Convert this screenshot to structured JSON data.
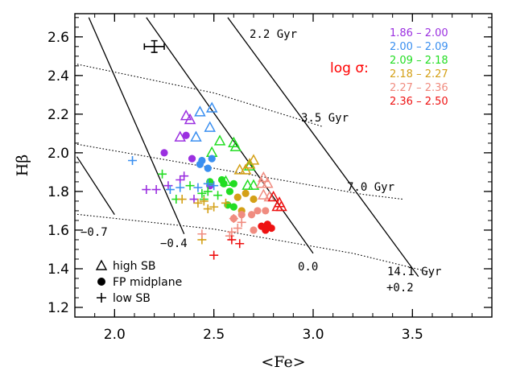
{
  "chart_data": {
    "type": "scatter",
    "xlabel": "<Fe>",
    "ylabel": "Hβ",
    "xlim": [
      1.8,
      3.9
    ],
    "ylim": [
      1.15,
      2.72
    ],
    "xticks": [
      {
        "v": 2.0,
        "label": "2.0"
      },
      {
        "v": 2.5,
        "label": "2.5"
      },
      {
        "v": 3.0,
        "label": "3.0"
      },
      {
        "v": 3.5,
        "label": "3.5"
      }
    ],
    "yticks": [
      {
        "v": 1.2,
        "label": "1.2"
      },
      {
        "v": 1.4,
        "label": "1.4"
      },
      {
        "v": 1.6,
        "label": "1.6"
      },
      {
        "v": 1.8,
        "label": "1.8"
      },
      {
        "v": 2.0,
        "label": "2.0"
      },
      {
        "v": 2.2,
        "label": "2.2"
      },
      {
        "v": 2.4,
        "label": "2.4"
      },
      {
        "v": 2.6,
        "label": "2.6"
      }
    ],
    "sigma_title": "log σ:",
    "sigma_title_color": "#ff0000",
    "bins": [
      {
        "label": "1.86 – 2.00",
        "color": "#9b30e0"
      },
      {
        "label": "2.00 – 2.09",
        "color": "#3a8ff0"
      },
      {
        "label": "2.09 – 2.18",
        "color": "#22dd22"
      },
      {
        "label": "2.18 – 2.27",
        "color": "#d4a017"
      },
      {
        "label": "2.27 – 2.36",
        "color": "#f08c80"
      },
      {
        "label": "2.36 – 2.50",
        "color": "#ee1111"
      }
    ],
    "age_grid": [
      {
        "label": "2.2 Gyr",
        "points": [
          [
            1.78,
            2.735
          ],
          [
            2.6,
            2.73
          ]
        ]
      },
      {
        "label": "3.5 Gyr",
        "points": [
          [
            1.78,
            2.465
          ],
          [
            2.5,
            2.31
          ],
          [
            3.05,
            2.135
          ]
        ]
      },
      {
        "label": "7.0 Gyr",
        "points": [
          [
            1.78,
            2.05
          ],
          [
            2.5,
            1.92
          ],
          [
            3.25,
            1.785
          ],
          [
            3.45,
            1.76
          ]
        ]
      },
      {
        "label": "14.1 Gyr",
        "points": [
          [
            1.78,
            1.685
          ],
          [
            2.5,
            1.605
          ],
          [
            3.2,
            1.48
          ],
          [
            3.6,
            1.38
          ]
        ]
      }
    ],
    "metal_grid": [
      {
        "label": "−0.7",
        "points": [
          [
            1.81,
            1.98
          ],
          [
            2.0,
            1.68
          ]
        ]
      },
      {
        "label": "−0.4",
        "points": [
          [
            1.87,
            2.7
          ],
          [
            2.35,
            1.58
          ]
        ]
      },
      {
        "label": "0.0",
        "points": [
          [
            2.16,
            2.7
          ],
          [
            3.0,
            1.48
          ]
        ]
      },
      {
        "label": "+0.2",
        "points": [
          [
            2.57,
            2.7
          ],
          [
            3.53,
            1.36
          ]
        ]
      }
    ],
    "error_bar": {
      "x": 2.2,
      "y": 2.55,
      "dx": 0.05,
      "dy": 0.03
    },
    "legend": [
      {
        "marker": "triangle",
        "label": "high SB"
      },
      {
        "marker": "circle",
        "label": "FP midplane"
      },
      {
        "marker": "plus",
        "label": "low SB"
      }
    ],
    "series": [
      {
        "marker": "triangle",
        "points": [
          [
            2.36,
            2.19,
            0
          ],
          [
            2.38,
            2.17,
            0
          ],
          [
            2.33,
            2.08,
            0
          ],
          [
            2.43,
            2.21,
            1
          ],
          [
            2.49,
            2.23,
            1
          ],
          [
            2.41,
            2.08,
            1
          ],
          [
            2.48,
            2.13,
            1
          ],
          [
            2.6,
            2.05,
            2
          ],
          [
            2.61,
            2.03,
            2
          ],
          [
            2.53,
            2.06,
            2
          ],
          [
            2.49,
            2.0,
            2
          ],
          [
            2.68,
            1.93,
            2
          ],
          [
            2.56,
            1.85,
            2
          ],
          [
            2.67,
            1.83,
            2
          ],
          [
            2.7,
            1.83,
            2
          ],
          [
            2.63,
            1.91,
            3
          ],
          [
            2.66,
            1.91,
            3
          ],
          [
            2.68,
            1.94,
            3
          ],
          [
            2.7,
            1.96,
            3
          ],
          [
            2.75,
            1.87,
            4
          ],
          [
            2.74,
            1.84,
            4
          ],
          [
            2.78,
            1.77,
            4
          ],
          [
            2.75,
            1.78,
            4
          ],
          [
            2.77,
            1.84,
            4
          ],
          [
            2.8,
            1.77,
            5
          ],
          [
            2.82,
            1.72,
            5
          ],
          [
            2.83,
            1.74,
            5
          ],
          [
            2.84,
            1.72,
            5
          ]
        ]
      },
      {
        "marker": "circle",
        "points": [
          [
            2.25,
            2.0,
            0
          ],
          [
            2.36,
            2.09,
            0
          ],
          [
            2.39,
            1.97,
            0
          ],
          [
            2.48,
            1.83,
            0
          ],
          [
            2.43,
            1.94,
            1
          ],
          [
            2.44,
            1.96,
            1
          ],
          [
            2.47,
            1.92,
            1
          ],
          [
            2.49,
            1.97,
            1
          ],
          [
            2.48,
            1.85,
            2
          ],
          [
            2.54,
            1.86,
            2
          ],
          [
            2.55,
            1.84,
            2
          ],
          [
            2.58,
            1.8,
            2
          ],
          [
            2.6,
            1.84,
            2
          ],
          [
            2.57,
            1.73,
            2
          ],
          [
            2.6,
            1.72,
            2
          ],
          [
            2.62,
            1.77,
            3
          ],
          [
            2.66,
            1.79,
            3
          ],
          [
            2.7,
            1.76,
            3
          ],
          [
            2.64,
            1.7,
            3
          ],
          [
            2.6,
            1.66,
            4
          ],
          [
            2.64,
            1.68,
            4
          ],
          [
            2.69,
            1.68,
            4
          ],
          [
            2.72,
            1.7,
            4
          ],
          [
            2.76,
            1.7,
            4
          ],
          [
            2.7,
            1.6,
            4
          ],
          [
            2.74,
            1.62,
            5
          ],
          [
            2.77,
            1.63,
            5
          ],
          [
            2.79,
            1.61,
            5
          ],
          [
            2.76,
            1.6,
            5
          ]
        ]
      },
      {
        "marker": "plus",
        "points": [
          [
            2.21,
            1.81,
            0
          ],
          [
            2.27,
            1.83,
            0
          ],
          [
            2.33,
            1.86,
            0
          ],
          [
            2.35,
            1.88,
            0
          ],
          [
            2.16,
            1.81,
            0
          ],
          [
            2.4,
            1.76,
            0
          ],
          [
            2.09,
            1.96,
            1
          ],
          [
            2.28,
            1.81,
            1
          ],
          [
            2.33,
            1.82,
            1
          ],
          [
            2.42,
            1.82,
            1
          ],
          [
            2.47,
            1.84,
            1
          ],
          [
            2.5,
            1.83,
            1
          ],
          [
            2.24,
            1.89,
            2
          ],
          [
            2.31,
            1.76,
            2
          ],
          [
            2.38,
            1.83,
            2
          ],
          [
            2.44,
            1.79,
            2
          ],
          [
            2.45,
            1.76,
            2
          ],
          [
            2.47,
            1.8,
            2
          ],
          [
            2.52,
            1.78,
            2
          ],
          [
            2.34,
            1.76,
            3
          ],
          [
            2.42,
            1.74,
            3
          ],
          [
            2.45,
            1.75,
            3
          ],
          [
            2.47,
            1.71,
            3
          ],
          [
            2.44,
            1.55,
            3
          ],
          [
            2.5,
            1.72,
            3
          ],
          [
            2.56,
            1.74,
            3
          ],
          [
            2.44,
            1.58,
            4
          ],
          [
            2.59,
            1.59,
            4
          ],
          [
            2.62,
            1.61,
            4
          ],
          [
            2.58,
            1.57,
            4
          ],
          [
            2.64,
            1.64,
            4
          ],
          [
            2.6,
            1.66,
            4
          ],
          [
            2.5,
            1.47,
            5
          ],
          [
            2.59,
            1.55,
            5
          ],
          [
            2.63,
            1.53,
            5
          ]
        ]
      }
    ]
  }
}
